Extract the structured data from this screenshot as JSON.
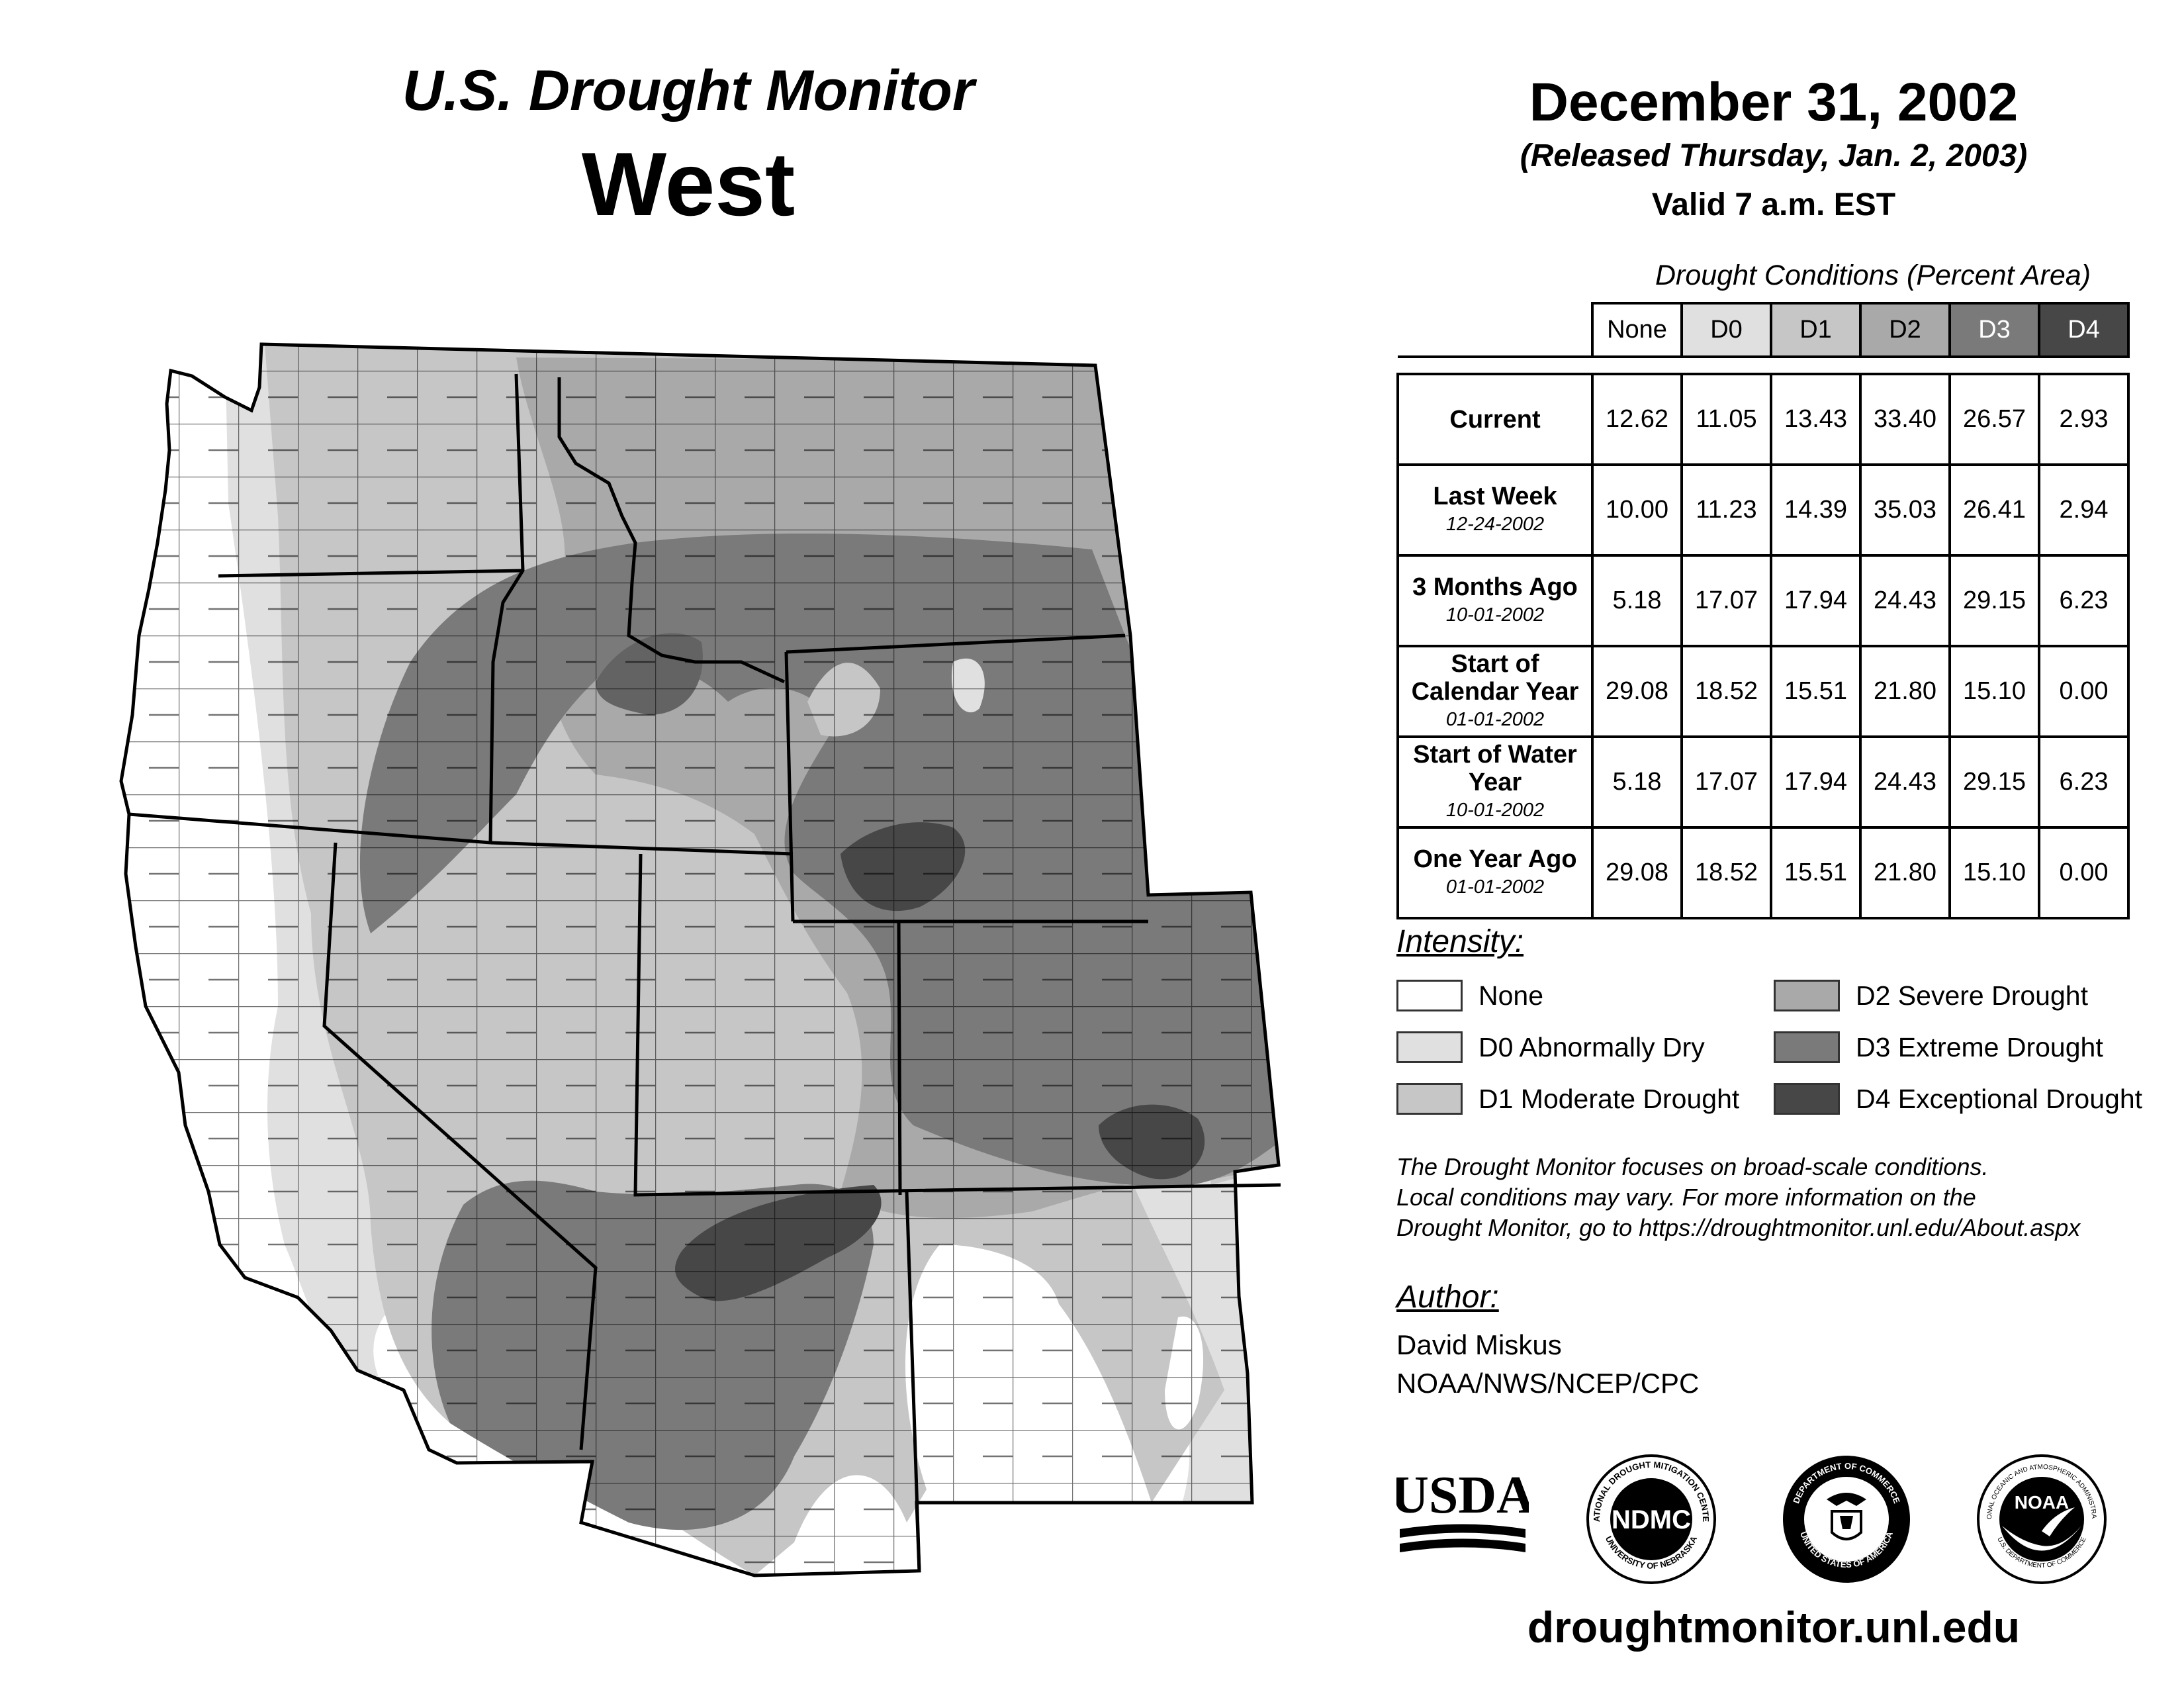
{
  "header": {
    "title": "U.S. Drought Monitor",
    "region": "West",
    "date": "December 31, 2002",
    "released": "(Released Thursday, Jan. 2, 2003)",
    "valid": "Valid 7 a.m. EST"
  },
  "table": {
    "caption": "Drought Conditions (Percent Area)",
    "columns": [
      "None",
      "D0",
      "D1",
      "D2",
      "D3",
      "D4"
    ],
    "rows": [
      {
        "label": "Current",
        "sub": "",
        "values": [
          "12.62",
          "11.05",
          "13.43",
          "33.40",
          "26.57",
          "2.93"
        ]
      },
      {
        "label": "Last Week",
        "sub": "12-24-2002",
        "values": [
          "10.00",
          "11.23",
          "14.39",
          "35.03",
          "26.41",
          "2.94"
        ]
      },
      {
        "label": "3 Months Ago",
        "sub": "10-01-2002",
        "values": [
          "5.18",
          "17.07",
          "17.94",
          "24.43",
          "29.15",
          "6.23"
        ]
      },
      {
        "label": "Start of Calendar Year",
        "sub": "01-01-2002",
        "values": [
          "29.08",
          "18.52",
          "15.51",
          "21.80",
          "15.10",
          "0.00"
        ]
      },
      {
        "label": "Start of Water Year",
        "sub": "10-01-2002",
        "values": [
          "5.18",
          "17.07",
          "17.94",
          "24.43",
          "29.15",
          "6.23"
        ]
      },
      {
        "label": "One Year Ago",
        "sub": "01-01-2002",
        "values": [
          "29.08",
          "18.52",
          "15.51",
          "21.80",
          "15.10",
          "0.00"
        ]
      }
    ]
  },
  "legend": {
    "title": "Intensity:",
    "items": [
      {
        "label": "None",
        "color": "#ffffff"
      },
      {
        "label": "D0 Abnormally Dry",
        "color": "#e0e0e0"
      },
      {
        "label": "D1 Moderate Drought",
        "color": "#c6c6c6"
      },
      {
        "label": "D2 Severe Drought",
        "color": "#a9a9a9"
      },
      {
        "label": "D3 Extreme Drought",
        "color": "#7a7a7a"
      },
      {
        "label": "D4 Exceptional Drought",
        "color": "#474747"
      }
    ]
  },
  "note": {
    "line1": "The Drought Monitor focuses on broad-scale conditions.",
    "line2": "Local conditions may vary. For more information on the",
    "line3": "Drought Monitor, go to https://droughtmonitor.unl.edu/About.aspx"
  },
  "author": {
    "title": "Author:",
    "name": "David Miskus",
    "org": "NOAA/NWS/NCEP/CPC"
  },
  "logos": {
    "usda": "USDA",
    "ndmc": "NDMC",
    "ndmc_ring_top": "NATIONAL DROUGHT MITIGATION CENTER",
    "ndmc_ring_bottom": "UNIVERSITY OF NEBRASKA",
    "doc_ring_top": "DEPARTMENT OF COMMERCE",
    "doc_ring_bottom": "UNITED STATES OF AMERICA",
    "noaa": "NOAA",
    "noaa_ring_top": "NATIONAL OCEANIC AND ATMOSPHERIC ADMINISTRATION",
    "noaa_ring_bottom": "U.S. DEPARTMENT OF COMMERCE"
  },
  "website": "droughtmonitor.unl.edu"
}
